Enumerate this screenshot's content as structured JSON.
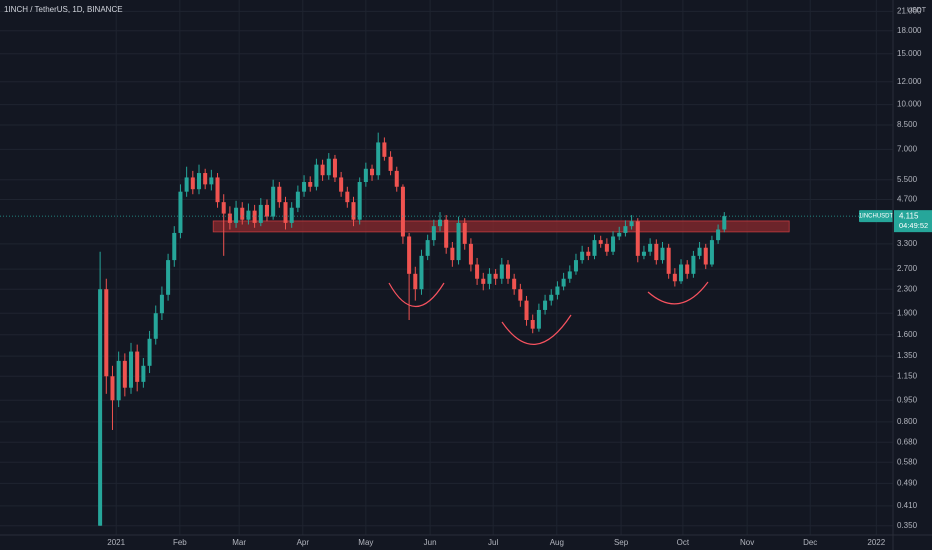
{
  "chart_data": {
    "type": "candlestick",
    "title": "1INCH / TetherUS, 1D, BINANCE",
    "currency": "USDT",
    "symbol_label": "1INCHUSDT",
    "last_price": 4.115,
    "countdown": "04:49:52",
    "log_scale": true,
    "grid": true,
    "up_color": "#26a69a",
    "down_color": "#ef5350",
    "open": [
      0.35,
      2.3,
      1.15,
      0.95,
      1.3,
      1.05,
      1.4,
      1.1,
      1.25,
      1.55,
      1.9,
      2.2,
      2.9,
      3.6,
      5.0,
      5.6,
      5.1,
      5.8,
      5.3,
      5.6,
      4.6,
      4.2,
      3.9,
      4.4,
      4.0,
      4.3,
      3.9,
      4.5,
      4.1,
      5.2,
      4.6,
      3.9,
      4.4,
      5.0,
      5.4,
      5.2,
      6.2,
      5.7,
      6.5,
      5.6,
      5.0,
      4.6,
      4.0,
      5.4,
      6.0,
      5.7,
      7.4,
      6.6,
      5.9,
      5.2,
      3.5,
      2.6,
      2.3,
      3.0,
      3.4,
      3.8,
      4.0,
      3.2,
      2.9,
      3.9,
      3.3,
      2.8,
      2.5,
      2.4,
      2.6,
      2.5,
      2.8,
      2.5,
      2.3,
      2.1,
      1.8,
      1.68,
      1.95,
      2.1,
      2.2,
      2.35,
      2.5,
      2.65,
      2.9,
      3.1,
      3.0,
      3.4,
      3.3,
      3.1,
      3.5,
      3.6,
      3.8,
      3.95,
      3.0,
      3.1,
      3.3,
      2.9,
      3.2,
      2.6,
      2.45,
      2.8,
      2.6,
      3.0,
      3.2,
      2.8,
      3.4,
      3.7
    ],
    "high": [
      3.1,
      2.5,
      1.25,
      1.4,
      1.38,
      1.5,
      1.48,
      1.33,
      1.65,
      2.02,
      2.35,
      3.05,
      3.8,
      5.3,
      6.1,
      5.9,
      6.2,
      6.0,
      5.95,
      5.8,
      4.9,
      4.45,
      4.65,
      4.6,
      4.55,
      4.5,
      4.75,
      4.7,
      5.5,
      5.4,
      4.8,
      4.6,
      5.25,
      5.7,
      5.65,
      6.5,
      6.45,
      6.8,
      6.7,
      5.85,
      5.2,
      4.8,
      5.6,
      6.3,
      6.2,
      8.0,
      7.7,
      6.9,
      6.1,
      5.3,
      3.6,
      2.75,
      3.15,
      3.55,
      4.0,
      4.25,
      4.15,
      3.35,
      4.1,
      4.05,
      3.45,
      2.95,
      2.62,
      2.72,
      2.7,
      2.95,
      2.9,
      2.6,
      2.4,
      2.18,
      1.88,
      2.05,
      2.2,
      2.3,
      2.45,
      2.62,
      2.78,
      3.05,
      3.25,
      3.22,
      3.55,
      3.52,
      3.45,
      3.65,
      3.78,
      3.98,
      4.15,
      4.05,
      3.25,
      3.45,
      3.42,
      3.35,
      3.3,
      2.72,
      2.92,
      2.9,
      3.12,
      3.35,
      3.3,
      3.52,
      3.85,
      4.25
    ],
    "low": [
      0.35,
      1.0,
      0.75,
      0.9,
      0.98,
      1.0,
      1.02,
      1.05,
      1.18,
      1.48,
      1.8,
      2.1,
      2.75,
      3.45,
      4.8,
      4.9,
      4.9,
      5.1,
      5.05,
      4.4,
      3.0,
      3.7,
      3.75,
      3.85,
      3.85,
      3.75,
      3.8,
      3.95,
      4.0,
      4.4,
      3.7,
      3.75,
      4.25,
      4.8,
      5.0,
      5.05,
      5.45,
      5.5,
      5.4,
      4.8,
      4.4,
      3.8,
      3.85,
      5.2,
      5.45,
      5.5,
      6.4,
      5.7,
      5.0,
      3.3,
      1.8,
      2.1,
      2.2,
      2.9,
      3.25,
      3.65,
      3.05,
      2.75,
      2.8,
      3.15,
      2.65,
      2.38,
      2.28,
      2.3,
      2.38,
      2.4,
      2.4,
      2.2,
      2.0,
      1.72,
      1.62,
      1.64,
      1.88,
      2.02,
      2.12,
      2.28,
      2.42,
      2.58,
      2.82,
      2.9,
      2.92,
      3.2,
      3.0,
      3.02,
      3.4,
      3.5,
      3.7,
      2.85,
      2.92,
      3.0,
      2.8,
      2.82,
      2.5,
      2.35,
      2.4,
      2.5,
      2.52,
      2.92,
      2.7,
      2.75,
      3.3,
      3.62
    ],
    "close": [
      2.3,
      1.15,
      0.95,
      1.3,
      1.05,
      1.4,
      1.1,
      1.25,
      1.55,
      1.9,
      2.2,
      2.9,
      3.6,
      5.0,
      5.6,
      5.1,
      5.8,
      5.3,
      5.6,
      4.6,
      4.2,
      3.9,
      4.4,
      4.0,
      4.3,
      3.9,
      4.5,
      4.1,
      5.2,
      4.6,
      3.9,
      4.4,
      5.0,
      5.4,
      5.2,
      6.2,
      5.7,
      6.5,
      5.6,
      5.0,
      4.6,
      4.0,
      5.4,
      6.0,
      5.7,
      7.4,
      6.6,
      5.9,
      5.2,
      3.5,
      2.6,
      2.3,
      3.0,
      3.4,
      3.8,
      4.0,
      3.2,
      2.9,
      3.9,
      3.3,
      2.8,
      2.5,
      2.4,
      2.6,
      2.5,
      2.8,
      2.5,
      2.3,
      2.1,
      1.8,
      1.68,
      1.95,
      2.1,
      2.2,
      2.35,
      2.5,
      2.65,
      2.9,
      3.1,
      3.0,
      3.4,
      3.3,
      3.1,
      3.5,
      3.6,
      3.8,
      3.95,
      3.0,
      3.1,
      3.3,
      2.9,
      3.2,
      2.6,
      2.45,
      2.8,
      2.6,
      3.0,
      3.2,
      2.8,
      3.4,
      3.7,
      4.115
    ],
    "xlim": [
      -16.2,
      128.3
    ],
    "xticks": [
      {
        "value": 2.6,
        "label": "2021"
      },
      {
        "value": 12.9,
        "label": "Feb"
      },
      {
        "value": 22.5,
        "label": "Mar"
      },
      {
        "value": 32.8,
        "label": "Apr"
      },
      {
        "value": 43.0,
        "label": "May"
      },
      {
        "value": 53.4,
        "label": "Jun"
      },
      {
        "value": 63.6,
        "label": "Jul"
      },
      {
        "value": 73.9,
        "label": "Aug"
      },
      {
        "value": 84.3,
        "label": "Sep"
      },
      {
        "value": 94.3,
        "label": "Oct"
      },
      {
        "value": 104.7,
        "label": "Nov"
      },
      {
        "value": 114.9,
        "label": "Dec"
      },
      {
        "value": 125.6,
        "label": "2022"
      }
    ],
    "ylim": [
      0.325,
      23
    ],
    "yticks": [
      {
        "value": 21,
        "label": "21.000"
      },
      {
        "value": 18,
        "label": "18.000"
      },
      {
        "value": 15,
        "label": "15.000"
      },
      {
        "value": 12,
        "label": "12.000"
      },
      {
        "value": 10,
        "label": "10.000"
      },
      {
        "value": 8.5,
        "label": "8.500"
      },
      {
        "value": 7,
        "label": "7.000"
      },
      {
        "value": 5.5,
        "label": "5.500"
      },
      {
        "value": 4.7,
        "label": "4.700"
      },
      {
        "value": 3.3,
        "label": "3.300"
      },
      {
        "value": 2.7,
        "label": "2.700"
      },
      {
        "value": 2.3,
        "label": "2.300"
      },
      {
        "value": 1.9,
        "label": "1.900"
      },
      {
        "value": 1.6,
        "label": "1.600"
      },
      {
        "value": 1.35,
        "label": "1.350"
      },
      {
        "value": 1.15,
        "label": "1.150"
      },
      {
        "value": 0.95,
        "label": "0.950"
      },
      {
        "value": 0.8,
        "label": "0.800"
      },
      {
        "value": 0.68,
        "label": "0.680"
      },
      {
        "value": 0.58,
        "label": "0.580"
      },
      {
        "value": 0.49,
        "label": "0.490"
      },
      {
        "value": 0.41,
        "label": "0.410"
      },
      {
        "value": 0.35,
        "label": "0.350"
      }
    ],
    "resistance_zone": {
      "low": 3.63,
      "high": 3.96,
      "from": 18.3,
      "to": 111.5,
      "color": "#8b2a2e"
    }
  }
}
